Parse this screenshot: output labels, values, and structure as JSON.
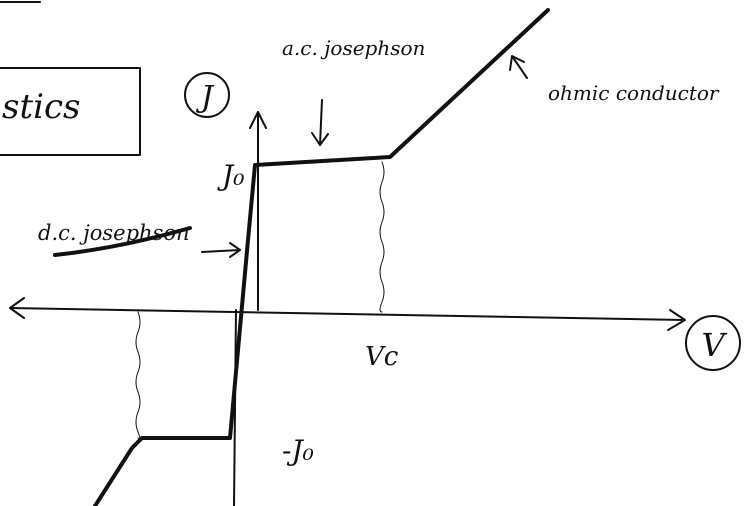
{
  "box": {
    "text": "stics"
  },
  "axes": {
    "y_label": "J",
    "x_label": "V"
  },
  "labels": {
    "j0": "J₀",
    "neg_j0": "-J₀",
    "vc": "Vc",
    "ac": "a.c. josephson",
    "dc": "d.c. josephson",
    "ohmic": "ohmic conductor"
  }
}
